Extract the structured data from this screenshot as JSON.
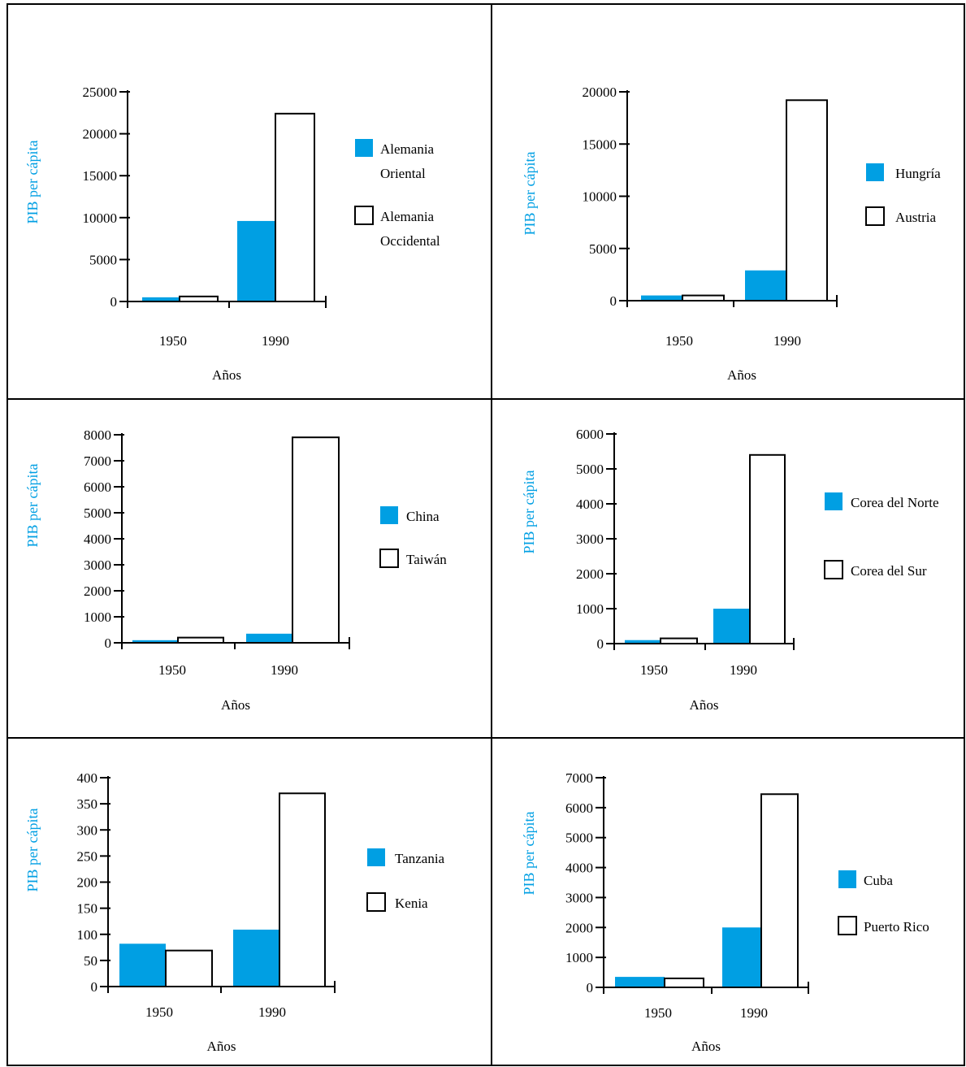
{
  "colors": {
    "primary_series": "#009fe3",
    "secondary_series": "#ffffff",
    "axis": "#000000",
    "ylabel": "#009fe3"
  },
  "chart_data": [
    {
      "type": "bar",
      "categories": [
        "1950",
        "1990"
      ],
      "xlabel": "Años",
      "ylabel": "PIB per cápita",
      "ylim": [
        0,
        25000
      ],
      "yticks": [
        "0",
        "5000",
        "10000",
        "15000",
        "20000",
        "25000"
      ],
      "grid": false,
      "legend_position": "right",
      "series": [
        {
          "name": "Alemania Oriental",
          "legend_lines": [
            "Alemania",
            "Oriental"
          ],
          "color": "#009fe3",
          "values": [
            500,
            9600
          ]
        },
        {
          "name": "Alemania Occidental",
          "legend_lines": [
            "Alemania",
            "Occidental"
          ],
          "color": "#ffffff",
          "values": [
            600,
            22400
          ]
        }
      ]
    },
    {
      "type": "bar",
      "categories": [
        "1950",
        "1990"
      ],
      "xlabel": "Años",
      "ylabel": "PIB per cápita",
      "ylim": [
        0,
        20000
      ],
      "yticks": [
        "0",
        "5000",
        "10000",
        "15000",
        "20000"
      ],
      "grid": false,
      "legend_position": "right",
      "series": [
        {
          "name": "Hungría",
          "legend_lines": [
            "Hungría"
          ],
          "color": "#009fe3",
          "values": [
            500,
            2900
          ]
        },
        {
          "name": "Austria",
          "legend_lines": [
            "Austria"
          ],
          "color": "#ffffff",
          "values": [
            500,
            19200
          ]
        }
      ]
    },
    {
      "type": "bar",
      "categories": [
        "1950",
        "1990"
      ],
      "xlabel": "Años",
      "ylabel": "PIB per cápita",
      "ylim": [
        0,
        8000
      ],
      "yticks": [
        "0",
        "1000",
        "2000",
        "3000",
        "4000",
        "5000",
        "6000",
        "7000",
        "8000"
      ],
      "grid": false,
      "legend_position": "right",
      "series": [
        {
          "name": "China",
          "legend_lines": [
            "China"
          ],
          "color": "#009fe3",
          "values": [
            100,
            350
          ]
        },
        {
          "name": "Taiwán",
          "legend_lines": [
            "Taiwán"
          ],
          "color": "#ffffff",
          "values": [
            200,
            7900
          ]
        }
      ]
    },
    {
      "type": "bar",
      "categories": [
        "1950",
        "1990"
      ],
      "xlabel": "Años",
      "ylabel": "PIB per cápita",
      "ylim": [
        0,
        6000
      ],
      "yticks": [
        "0",
        "1000",
        "2000",
        "3000",
        "4000",
        "5000",
        "6000"
      ],
      "grid": false,
      "legend_position": "right",
      "series": [
        {
          "name": "Corea del Norte",
          "legend_lines": [
            "Corea del Norte"
          ],
          "color": "#009fe3",
          "values": [
            100,
            1000
          ]
        },
        {
          "name": "Corea del Sur",
          "legend_lines": [
            "Corea del Sur"
          ],
          "color": "#ffffff",
          "values": [
            150,
            5400
          ]
        }
      ]
    },
    {
      "type": "bar",
      "categories": [
        "1950",
        "1990"
      ],
      "xlabel": "Años",
      "ylabel": "PIB per cápita",
      "ylim": [
        0,
        400
      ],
      "yticks": [
        "0",
        "50",
        "100",
        "150",
        "200",
        "250",
        "300",
        "350",
        "400"
      ],
      "grid": false,
      "legend_position": "right",
      "series": [
        {
          "name": "Tanzania",
          "legend_lines": [
            "Tanzania"
          ],
          "color": "#009fe3",
          "values": [
            82,
            109
          ]
        },
        {
          "name": "Kenia",
          "legend_lines": [
            "Kenia"
          ],
          "color": "#ffffff",
          "values": [
            69,
            370
          ]
        }
      ]
    },
    {
      "type": "bar",
      "categories": [
        "1950",
        "1990"
      ],
      "xlabel": "Años",
      "ylabel": "PIB per cápita",
      "ylim": [
        0,
        7000
      ],
      "yticks": [
        "0",
        "1000",
        "2000",
        "3000",
        "4000",
        "5000",
        "6000",
        "7000"
      ],
      "grid": false,
      "legend_position": "right",
      "series": [
        {
          "name": "Cuba",
          "legend_lines": [
            "Cuba"
          ],
          "color": "#009fe3",
          "values": [
            350,
            2000
          ]
        },
        {
          "name": "Puerto Rico",
          "legend_lines": [
            "Puerto Rico"
          ],
          "color": "#ffffff",
          "values": [
            300,
            6450
          ]
        }
      ]
    }
  ]
}
